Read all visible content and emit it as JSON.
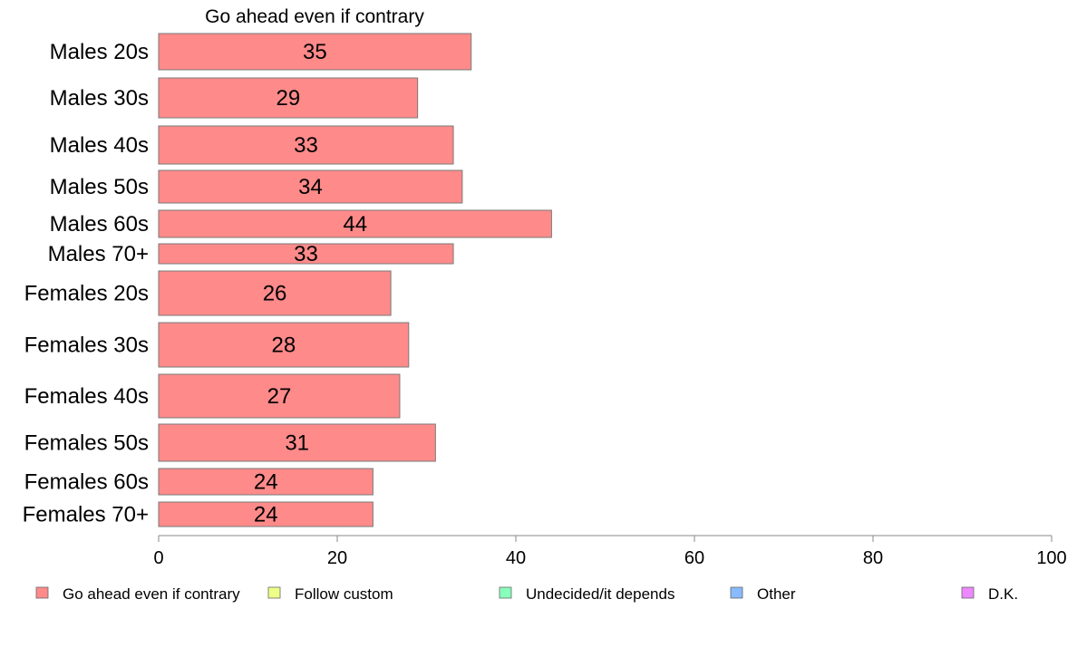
{
  "chart_data": {
    "type": "bar",
    "orientation": "horizontal",
    "title": "Go ahead even if contrary",
    "categories": [
      "Males 20s",
      "Males 30s",
      "Males 40s",
      "Males 50s",
      "Males 60s",
      "Males 70+",
      "Females 20s",
      "Females 30s",
      "Females 40s",
      "Females 50s",
      "Females 60s",
      "Females 70+"
    ],
    "values": [
      35,
      29,
      33,
      34,
      44,
      33,
      26,
      28,
      27,
      31,
      24,
      24
    ],
    "data_labels": [
      "35",
      "29",
      "33",
      "34",
      "44",
      "33",
      "26",
      "28",
      "27",
      "31",
      "24",
      "24"
    ],
    "xlim": [
      0,
      100
    ],
    "xticks": [
      0,
      20,
      40,
      60,
      80,
      100
    ],
    "xtick_labels": [
      "0",
      "20",
      "40",
      "60",
      "80",
      "100"
    ],
    "grid": false,
    "legend_position": "bottom",
    "legend": [
      {
        "label": "Go ahead even if contrary",
        "color": "#ff8a8a"
      },
      {
        "label": "Follow custom",
        "color": "#eeff88"
      },
      {
        "label": "Undecided/it depends",
        "color": "#88ffbb"
      },
      {
        "label": "Other",
        "color": "#88bbff"
      },
      {
        "label": "D.K.",
        "color": "#ee88ff"
      }
    ],
    "bar_color": "#ff8a8a"
  }
}
